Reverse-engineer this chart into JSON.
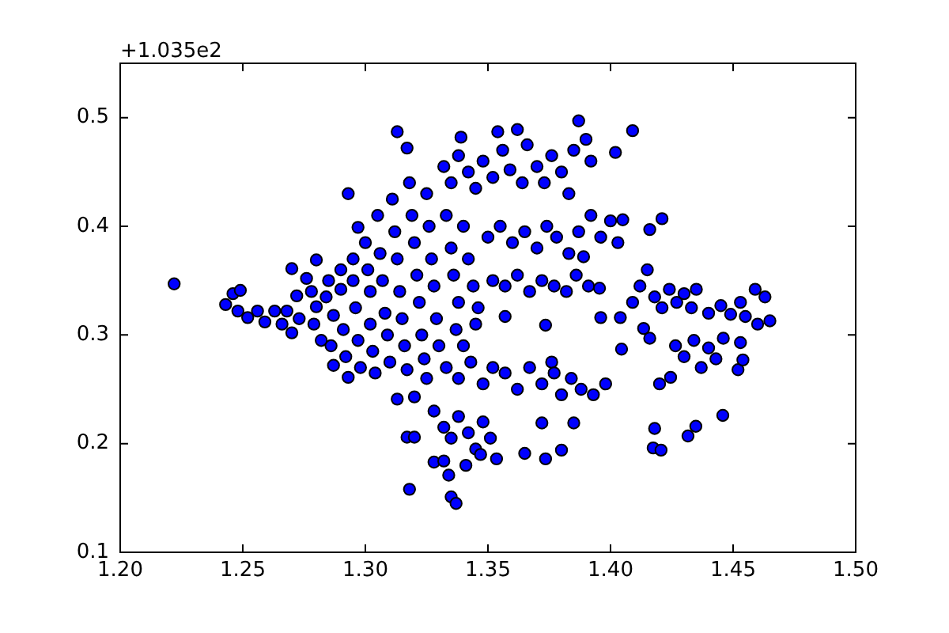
{
  "chart_data": {
    "type": "scatter",
    "annotations": [
      "+1.035e2"
    ],
    "color": "#0000ff",
    "marker": "circle",
    "xlim": [
      1.2,
      1.5
    ],
    "xticks": [
      {
        "value": 1.2,
        "label": "1.20"
      },
      1.25,
      {
        "value": 1.3,
        "label": "1.30"
      },
      1.35,
      {
        "value": 1.4,
        "label": "1.40"
      },
      1.45,
      {
        "value": 1.5,
        "label": "1.50"
      }
    ],
    "ylim": [
      0.1,
      0.55
    ],
    "yticks": [
      0.1,
      0.2,
      0.3,
      0.4,
      0.5
    ],
    "x": [
      1.222,
      1.243,
      1.246,
      1.249,
      1.248,
      1.252,
      1.256,
      1.259,
      1.263,
      1.266,
      1.268,
      1.27,
      1.273,
      1.272,
      1.27,
      1.276,
      1.278,
      1.28,
      1.28,
      1.279,
      1.282,
      1.285,
      1.284,
      1.287,
      1.286,
      1.287,
      1.29,
      1.29,
      1.291,
      1.292,
      1.293,
      1.295,
      1.295,
      1.296,
      1.297,
      1.298,
      1.293,
      1.297,
      1.3,
      1.301,
      1.302,
      1.302,
      1.303,
      1.304,
      1.305,
      1.306,
      1.307,
      1.308,
      1.309,
      1.31,
      1.311,
      1.312,
      1.313,
      1.314,
      1.315,
      1.316,
      1.317,
      1.318,
      1.319,
      1.32,
      1.321,
      1.322,
      1.323,
      1.324,
      1.325,
      1.326,
      1.327,
      1.328,
      1.329,
      1.33,
      1.313,
      1.317,
      1.313,
      1.32,
      1.325,
      1.332,
      1.335,
      1.338,
      1.339,
      1.342,
      1.345,
      1.348,
      1.352,
      1.354,
      1.356,
      1.359,
      1.362,
      1.364,
      1.366,
      1.37,
      1.373,
      1.376,
      1.38,
      1.383,
      1.385,
      1.387,
      1.39,
      1.392,
      1.402,
      1.409,
      1.333,
      1.335,
      1.336,
      1.338,
      1.34,
      1.342,
      1.344,
      1.346,
      1.337,
      1.34,
      1.345,
      1.35,
      1.355,
      1.36,
      1.365,
      1.37,
      1.374,
      1.378,
      1.383,
      1.387,
      1.392,
      1.396,
      1.4,
      1.403,
      1.405,
      1.416,
      1.421,
      1.389,
      1.352,
      1.357,
      1.362,
      1.367,
      1.372,
      1.377,
      1.382,
      1.386,
      1.391,
      1.3955,
      1.357,
      1.3735,
      1.396,
      1.404,
      1.4045,
      1.333,
      1.338,
      1.343,
      1.348,
      1.352,
      1.357,
      1.362,
      1.367,
      1.372,
      1.376,
      1.38,
      1.384,
      1.388,
      1.393,
      1.398,
      1.377,
      1.328,
      1.332,
      1.335,
      1.338,
      1.342,
      1.345,
      1.348,
      1.351,
      1.328,
      1.332,
      1.334,
      1.341,
      1.347,
      1.3535,
      1.318,
      1.335,
      1.337,
      1.317,
      1.32,
      1.365,
      1.3735,
      1.38,
      1.372,
      1.385,
      1.409,
      1.412,
      1.415,
      1.418,
      1.421,
      1.424,
      1.427,
      1.43,
      1.433,
      1.435,
      1.44,
      1.445,
      1.449,
      1.453,
      1.455,
      1.46,
      1.465,
      1.459,
      1.463,
      1.4135,
      1.416,
      1.4265,
      1.43,
      1.434,
      1.437,
      1.44,
      1.443,
      1.446,
      1.453,
      1.452,
      1.454,
      1.42,
      1.4245,
      1.4458,
      1.4348,
      1.4316,
      1.418,
      1.4174,
      1.4206
    ],
    "values": [
      0.347,
      0.328,
      0.338,
      0.341,
      0.322,
      0.316,
      0.322,
      0.312,
      0.322,
      0.31,
      0.322,
      0.302,
      0.315,
      0.336,
      0.361,
      0.352,
      0.34,
      0.369,
      0.326,
      0.31,
      0.295,
      0.35,
      0.335,
      0.318,
      0.29,
      0.272,
      0.36,
      0.342,
      0.305,
      0.28,
      0.261,
      0.37,
      0.35,
      0.325,
      0.295,
      0.27,
      0.43,
      0.399,
      0.385,
      0.36,
      0.34,
      0.31,
      0.285,
      0.265,
      0.41,
      0.375,
      0.35,
      0.32,
      0.3,
      0.275,
      0.425,
      0.395,
      0.37,
      0.34,
      0.315,
      0.29,
      0.268,
      0.44,
      0.41,
      0.385,
      0.355,
      0.33,
      0.3,
      0.278,
      0.43,
      0.4,
      0.37,
      0.345,
      0.315,
      0.29,
      0.487,
      0.472,
      0.241,
      0.243,
      0.26,
      0.455,
      0.44,
      0.465,
      0.482,
      0.45,
      0.435,
      0.46,
      0.445,
      0.487,
      0.47,
      0.452,
      0.489,
      0.44,
      0.475,
      0.455,
      0.44,
      0.465,
      0.45,
      0.43,
      0.47,
      0.497,
      0.48,
      0.46,
      0.468,
      0.488,
      0.41,
      0.38,
      0.355,
      0.33,
      0.4,
      0.37,
      0.345,
      0.325,
      0.305,
      0.29,
      0.31,
      0.39,
      0.4,
      0.385,
      0.395,
      0.38,
      0.4,
      0.39,
      0.375,
      0.395,
      0.41,
      0.39,
      0.405,
      0.385,
      0.406,
      0.397,
      0.407,
      0.372,
      0.35,
      0.345,
      0.355,
      0.34,
      0.35,
      0.345,
      0.34,
      0.355,
      0.345,
      0.343,
      0.317,
      0.309,
      0.316,
      0.316,
      0.287,
      0.27,
      0.26,
      0.275,
      0.255,
      0.27,
      0.265,
      0.25,
      0.27,
      0.255,
      0.275,
      0.245,
      0.26,
      0.25,
      0.245,
      0.255,
      0.265,
      0.23,
      0.215,
      0.205,
      0.225,
      0.21,
      0.195,
      0.22,
      0.205,
      0.183,
      0.184,
      0.171,
      0.18,
      0.19,
      0.186,
      0.158,
      0.151,
      0.145,
      0.206,
      0.206,
      0.191,
      0.186,
      0.194,
      0.219,
      0.219,
      0.33,
      0.345,
      0.36,
      0.335,
      0.325,
      0.342,
      0.33,
      0.338,
      0.325,
      0.342,
      0.32,
      0.327,
      0.319,
      0.33,
      0.317,
      0.31,
      0.313,
      0.342,
      0.335,
      0.306,
      0.297,
      0.29,
      0.28,
      0.295,
      0.27,
      0.288,
      0.278,
      0.297,
      0.293,
      0.268,
      0.277,
      0.255,
      0.261,
      0.226,
      0.216,
      0.207,
      0.214,
      0.196,
      0.194
    ]
  }
}
